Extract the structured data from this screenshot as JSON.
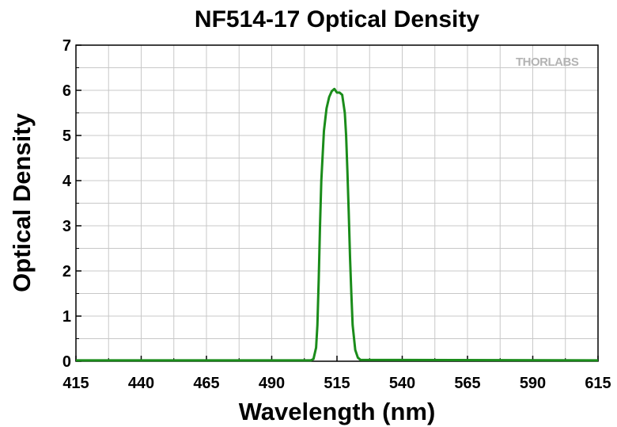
{
  "chart_data": {
    "type": "line",
    "title": "NF514-17 Optical Density",
    "xlabel": "Wavelength (nm)",
    "ylabel": "Optical Density",
    "xlim": [
      415,
      615
    ],
    "ylim": [
      0,
      7
    ],
    "x_ticks": [
      "415",
      "440",
      "465",
      "490",
      "515",
      "540",
      "565",
      "590",
      "615"
    ],
    "y_ticks": [
      "0",
      "1",
      "2",
      "3",
      "4",
      "5",
      "6",
      "7"
    ],
    "grid": true,
    "watermark": "THORLABS",
    "series": [
      {
        "color": "#1a8c1a",
        "x": [
          415,
          505,
          506,
          507,
          507.5,
          508,
          508.5,
          509,
          510,
          511,
          512,
          513,
          514,
          515,
          516,
          517,
          518,
          518.5,
          519,
          519.5,
          520,
          520.5,
          521,
          522,
          523,
          524,
          615
        ],
        "y": [
          0.02,
          0.02,
          0.05,
          0.3,
          0.8,
          1.8,
          3.0,
          4.0,
          5.1,
          5.6,
          5.85,
          5.98,
          6.03,
          5.95,
          5.95,
          5.9,
          5.5,
          5.0,
          4.2,
          3.3,
          2.3,
          1.5,
          0.8,
          0.25,
          0.08,
          0.03,
          0.02
        ]
      }
    ]
  }
}
